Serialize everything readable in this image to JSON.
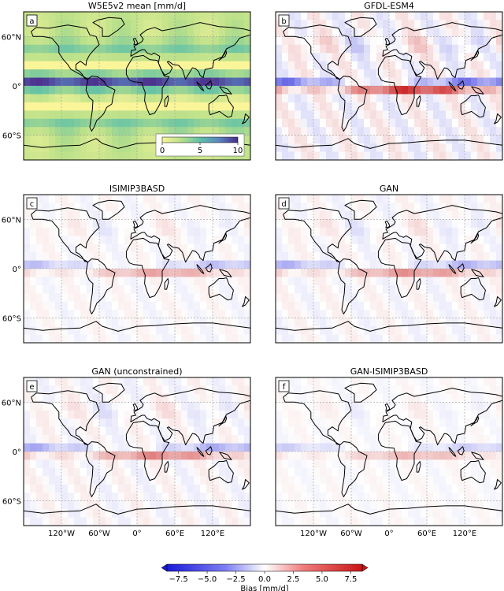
{
  "chart_data": {
    "type": "heatmap",
    "panels": [
      {
        "letter": "a",
        "title": "W5E5v2 mean [mm/d]",
        "kind": "mean",
        "show_lat_labels": true,
        "show_lon_labels": false,
        "inset_colorbar": {
          "ticks": [
            "0",
            "5",
            "10"
          ],
          "vmin": 0,
          "vmax": 10
        }
      },
      {
        "letter": "b",
        "title": "GFDL-ESM4",
        "kind": "bias",
        "strength": 1.0,
        "show_lat_labels": false,
        "show_lon_labels": false
      },
      {
        "letter": "c",
        "title": "ISIMIP3BASD",
        "kind": "bias",
        "strength": 0.45,
        "show_lat_labels": true,
        "show_lon_labels": false
      },
      {
        "letter": "d",
        "title": "GAN",
        "kind": "bias",
        "strength": 0.55,
        "show_lat_labels": false,
        "show_lon_labels": false
      },
      {
        "letter": "e",
        "title": "GAN (unconstrained)",
        "kind": "bias",
        "strength": 0.6,
        "show_lat_labels": true,
        "show_lon_labels": true
      },
      {
        "letter": "f",
        "title": "GAN-ISIMIP3BASD",
        "kind": "bias",
        "strength": 0.35,
        "show_lat_labels": false,
        "show_lon_labels": true
      }
    ],
    "lat_ticks": [
      "60°N",
      "0°",
      "60°S"
    ],
    "lat_values": [
      60,
      0,
      -60
    ],
    "lon_ticks": [
      "120°W",
      "60°W",
      "0°",
      "60°E",
      "120°E"
    ],
    "lon_values": [
      -120,
      -60,
      0,
      60,
      120
    ],
    "lon_range": [
      -180,
      180
    ],
    "lat_range": [
      -90,
      90
    ],
    "colorbar": {
      "label": "Bias [mm/d]",
      "ticks": [
        "−7.5",
        "−5.0",
        "−2.5",
        "0.0",
        "2.5",
        "5.0",
        "7.5"
      ],
      "tick_values": [
        -7.5,
        -5.0,
        -2.5,
        0.0,
        2.5,
        5.0,
        7.5
      ],
      "vmin": -8.5,
      "vmax": 8.5,
      "colormap": "bwr"
    }
  }
}
